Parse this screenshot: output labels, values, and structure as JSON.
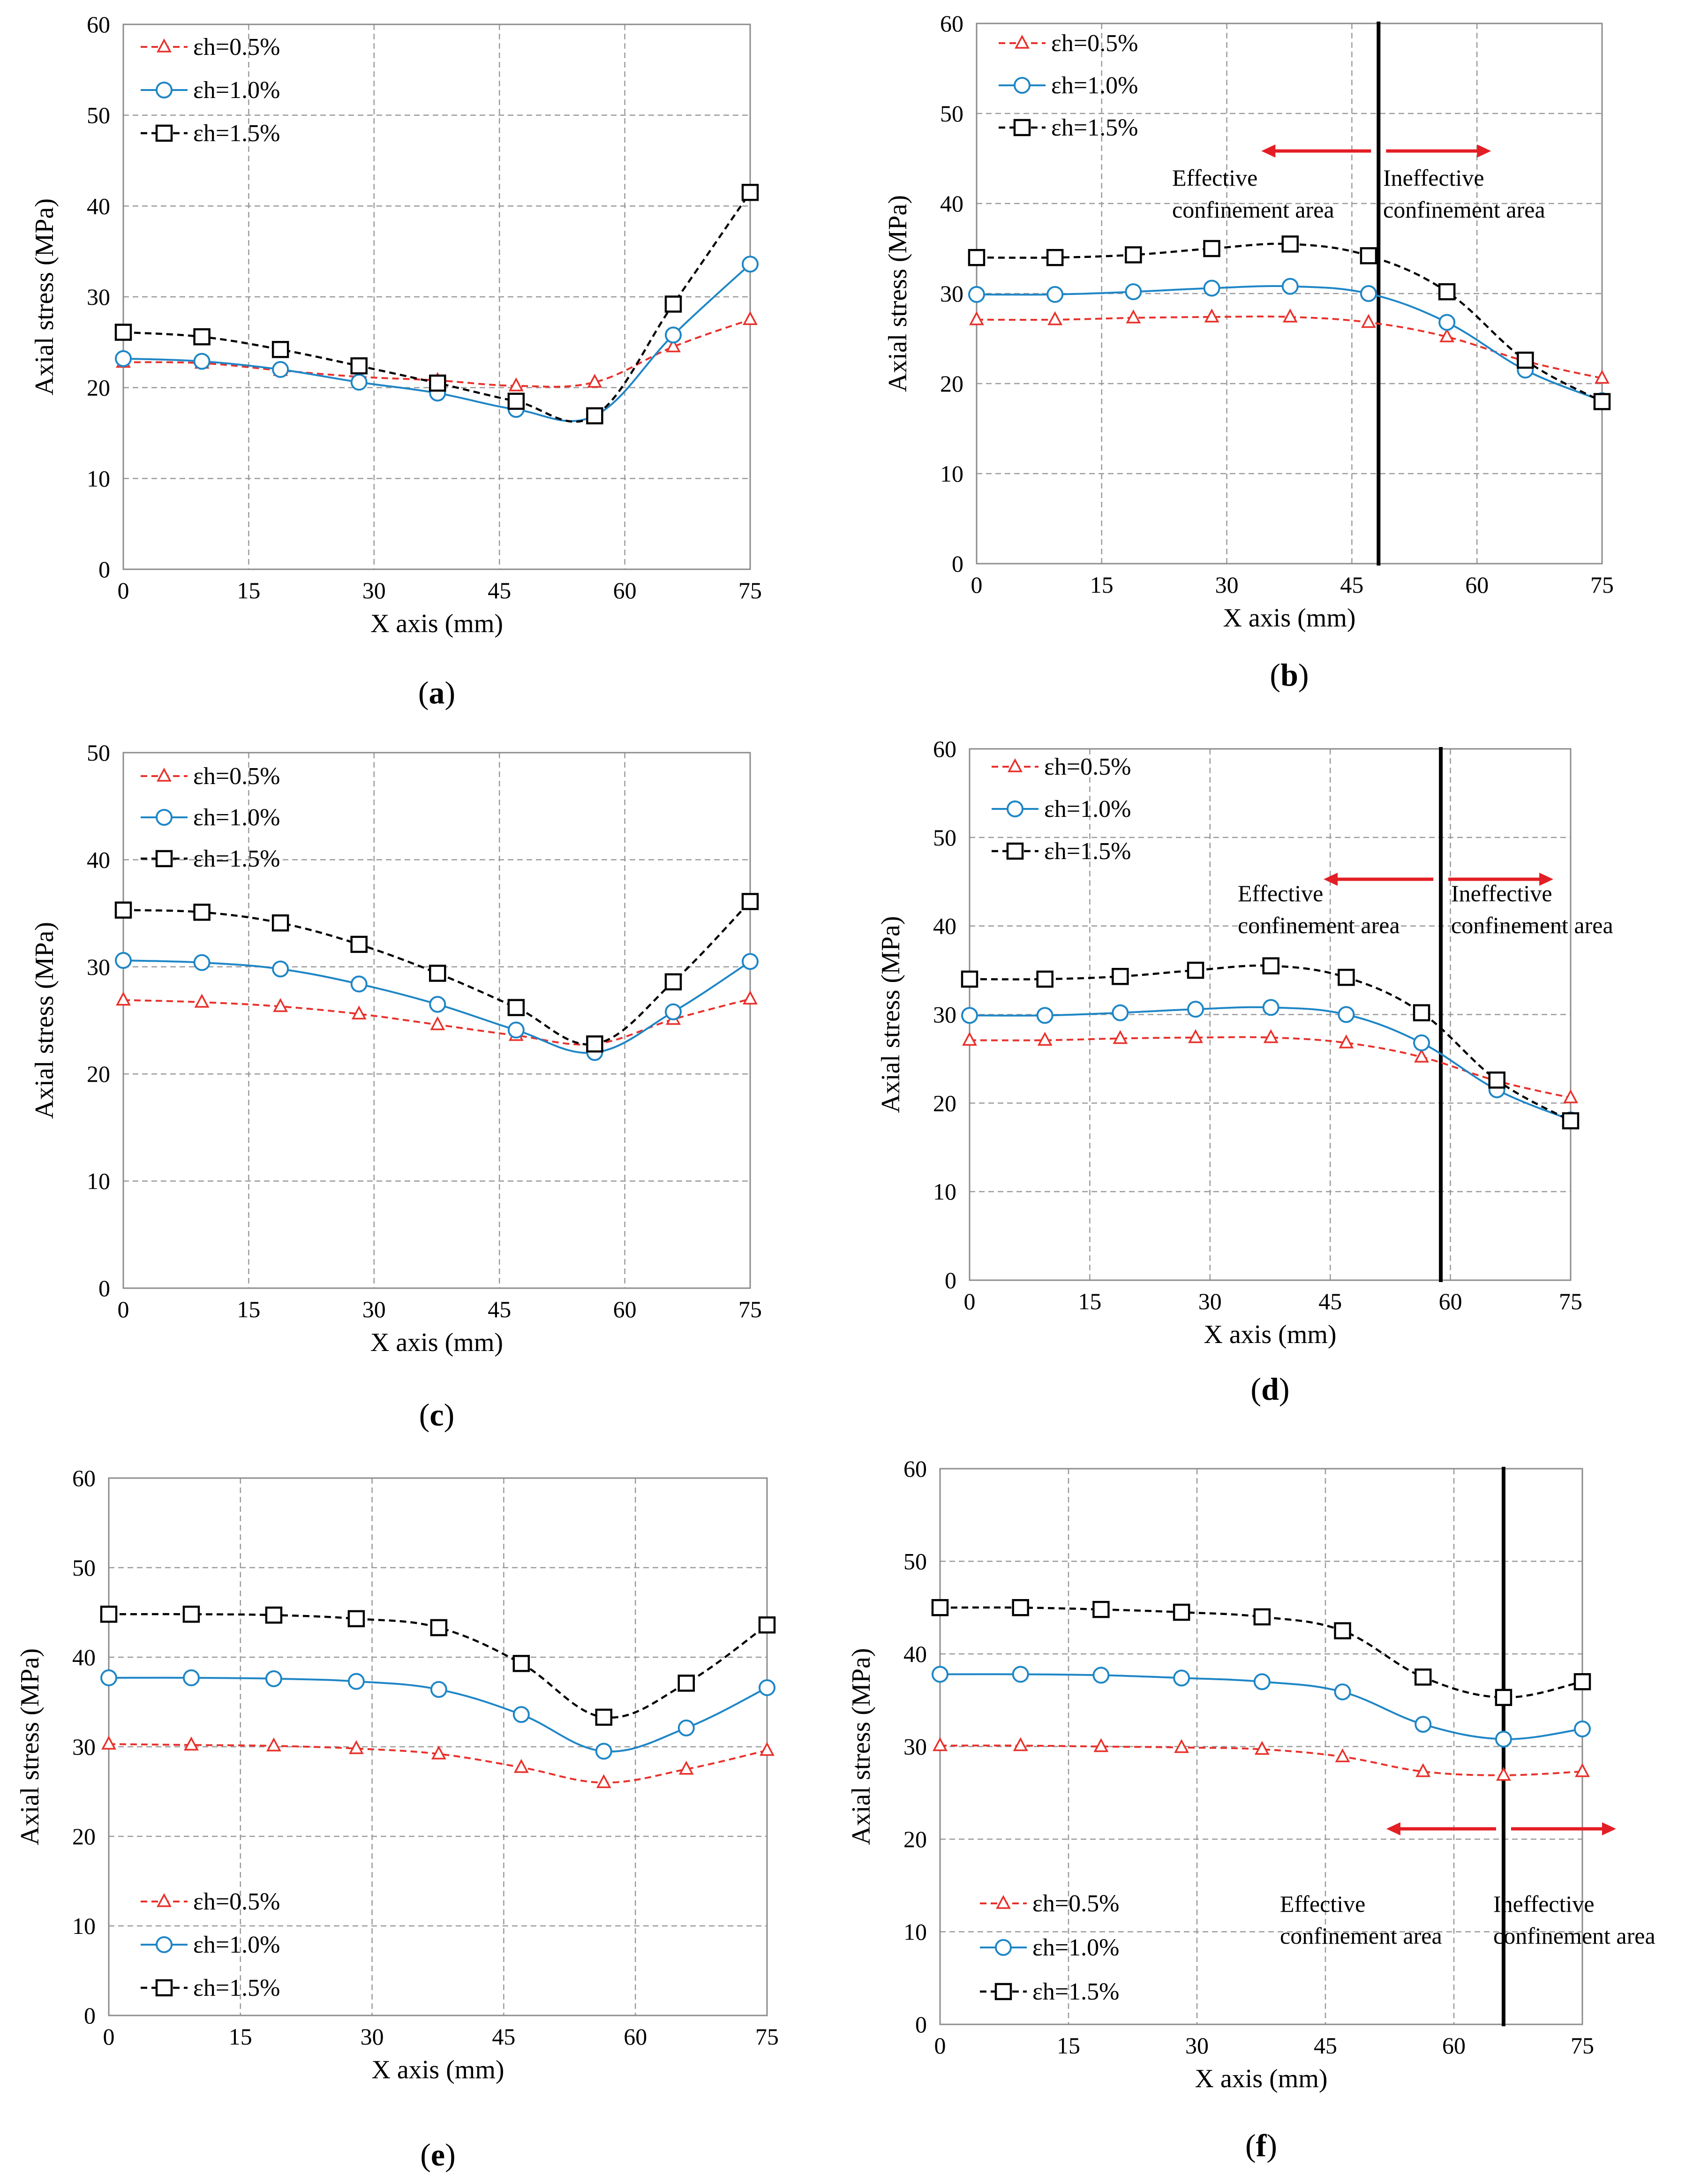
{
  "colors": {
    "s05": "#e8312b",
    "s10": "#1f86c6",
    "s15": "#000000",
    "grid": "#9a9a9a",
    "arrow": "#e31e24"
  },
  "chart_data": [
    {
      "type": "line",
      "caption": "a",
      "title": "",
      "xlabel": "X axis (mm)",
      "ylabel": "Axial stress (MPa)",
      "xlim": [
        0,
        75
      ],
      "ylim": [
        0,
        60
      ],
      "xticks": [
        0,
        15,
        30,
        45,
        60,
        75
      ],
      "yticks": [
        0,
        10,
        20,
        30,
        40,
        50,
        60
      ],
      "legend_position": "top-left",
      "x": [
        0,
        9.4,
        18.8,
        28.2,
        37.6,
        47,
        56.4,
        65.8,
        75
      ],
      "series": [
        {
          "name": "εh=0.5%",
          "values": [
            22.8,
            22.7,
            21.9,
            21.2,
            20.8,
            20.2,
            20.6,
            24.5,
            27.5
          ]
        },
        {
          "name": "εh=1.0%",
          "values": [
            23.2,
            22.9,
            22.0,
            20.6,
            19.4,
            17.6,
            16.9,
            25.8,
            33.6
          ]
        },
        {
          "name": "εh=1.5%",
          "values": [
            26.1,
            25.6,
            24.2,
            22.4,
            20.5,
            18.5,
            16.9,
            29.2,
            41.5
          ]
        }
      ]
    },
    {
      "type": "line",
      "caption": "b",
      "title": "",
      "xlabel": "X axis (mm)",
      "ylabel": "Axial stress (MPa)",
      "xlim": [
        0,
        75
      ],
      "ylim": [
        0,
        60
      ],
      "xticks": [
        0,
        15,
        30,
        45,
        60,
        75
      ],
      "yticks": [
        0,
        10,
        20,
        30,
        40,
        50,
        60
      ],
      "legend_position": "top-left",
      "x": [
        0,
        9.4,
        18.8,
        28.2,
        37.6,
        47,
        56.4,
        65.8,
        75
      ],
      "series": [
        {
          "name": "εh=0.5%",
          "values": [
            27.1,
            27.1,
            27.3,
            27.4,
            27.4,
            26.8,
            25.2,
            22.5,
            20.6
          ]
        },
        {
          "name": "εh=1.0%",
          "values": [
            29.9,
            29.9,
            30.2,
            30.6,
            30.8,
            30.0,
            26.8,
            21.5,
            18.1
          ]
        },
        {
          "name": "εh=1.5%",
          "values": [
            34.0,
            34.0,
            34.3,
            35.0,
            35.5,
            34.2,
            30.2,
            22.6,
            18.0
          ]
        }
      ],
      "boundary_x": 48.2,
      "annotations": {
        "left": [
          "Effective",
          "confinement area"
        ],
        "right": [
          "Ineffective",
          "confinement area"
        ]
      }
    },
    {
      "type": "line",
      "caption": "c",
      "title": "",
      "xlabel": "X axis (mm)",
      "ylabel": "Axial stress (MPa)",
      "xlim": [
        0,
        75
      ],
      "ylim": [
        0,
        50
      ],
      "xticks": [
        0,
        15,
        30,
        45,
        60,
        75
      ],
      "yticks": [
        0,
        10,
        20,
        30,
        40,
        50
      ],
      "legend_position": "top-left",
      "x": [
        0,
        9.4,
        18.8,
        28.2,
        37.6,
        47,
        56.4,
        65.8,
        75
      ],
      "series": [
        {
          "name": "εh=0.5%",
          "values": [
            26.9,
            26.7,
            26.3,
            25.6,
            24.6,
            23.6,
            22.8,
            25.1,
            27.0
          ]
        },
        {
          "name": "εh=1.0%",
          "values": [
            30.6,
            30.4,
            29.8,
            28.4,
            26.5,
            24.1,
            22.0,
            25.8,
            30.5
          ]
        },
        {
          "name": "εh=1.5%",
          "values": [
            35.3,
            35.1,
            34.1,
            32.1,
            29.4,
            26.2,
            22.8,
            28.6,
            36.1
          ]
        }
      ]
    },
    {
      "type": "line",
      "caption": "d",
      "title": "",
      "xlabel": "X axis (mm)",
      "ylabel": "Axial stress (MPa)",
      "xlim": [
        0,
        75
      ],
      "ylim": [
        0,
        60
      ],
      "xticks": [
        0,
        15,
        30,
        45,
        60,
        75
      ],
      "yticks": [
        0,
        10,
        20,
        30,
        40,
        50,
        60
      ],
      "legend_position": "top-left",
      "x": [
        0,
        9.4,
        18.8,
        28.2,
        37.6,
        47,
        56.4,
        65.8,
        75
      ],
      "series": [
        {
          "name": "εh=0.5%",
          "values": [
            27.1,
            27.1,
            27.3,
            27.4,
            27.4,
            26.8,
            25.2,
            22.5,
            20.6
          ]
        },
        {
          "name": "εh=1.0%",
          "values": [
            29.9,
            29.9,
            30.2,
            30.6,
            30.8,
            30.0,
            26.8,
            21.5,
            18.1
          ]
        },
        {
          "name": "εh=1.5%",
          "values": [
            34.0,
            34.0,
            34.3,
            35.0,
            35.5,
            34.2,
            30.2,
            22.6,
            18.0
          ]
        }
      ],
      "boundary_x": 58.8,
      "annotations": {
        "left": [
          "Effective",
          "confinement area"
        ],
        "right": [
          "Ineffective",
          "confinement area"
        ]
      }
    },
    {
      "type": "line",
      "caption": "e",
      "title": "",
      "xlabel": "X axis (mm)",
      "ylabel": "Axial stress (MPa)",
      "xlim": [
        0,
        75
      ],
      "ylim": [
        0,
        60
      ],
      "xticks": [
        0,
        15,
        30,
        45,
        60,
        75
      ],
      "yticks": [
        0,
        10,
        20,
        30,
        40,
        50,
        60
      ],
      "legend_position": "bottom-left",
      "x": [
        0,
        9.4,
        18.8,
        28.2,
        37.6,
        47,
        56.4,
        65.8,
        75
      ],
      "series": [
        {
          "name": "εh=0.5%",
          "values": [
            30.3,
            30.2,
            30.1,
            29.8,
            29.2,
            27.7,
            26.0,
            27.5,
            29.6
          ]
        },
        {
          "name": "εh=1.0%",
          "values": [
            37.7,
            37.7,
            37.6,
            37.3,
            36.4,
            33.6,
            29.5,
            32.1,
            36.6
          ]
        },
        {
          "name": "εh=1.5%",
          "values": [
            44.8,
            44.8,
            44.7,
            44.3,
            43.3,
            39.3,
            33.3,
            37.1,
            43.6
          ]
        }
      ]
    },
    {
      "type": "line",
      "caption": "f",
      "title": "",
      "xlabel": "X axis (mm)",
      "ylabel": "Axial stress (MPa)",
      "xlim": [
        0,
        75
      ],
      "ylim": [
        0,
        60
      ],
      "xticks": [
        0,
        15,
        30,
        45,
        60,
        75
      ],
      "yticks": [
        0,
        10,
        20,
        30,
        40,
        50,
        60
      ],
      "legend_position": "bottom-left",
      "x": [
        0,
        9.4,
        18.8,
        28.2,
        37.6,
        47,
        56.4,
        65.8,
        75
      ],
      "series": [
        {
          "name": "εh=0.5%",
          "values": [
            30.1,
            30.1,
            30.0,
            29.9,
            29.7,
            28.9,
            27.3,
            26.9,
            27.3
          ]
        },
        {
          "name": "εh=1.0%",
          "values": [
            37.8,
            37.8,
            37.7,
            37.4,
            37.0,
            35.9,
            32.4,
            30.8,
            31.9
          ]
        },
        {
          "name": "εh=1.5%",
          "values": [
            45.0,
            45.0,
            44.8,
            44.5,
            44.0,
            42.5,
            37.5,
            35.3,
            37.0
          ]
        }
      ],
      "boundary_x": 65.8,
      "annotations": {
        "left": [
          "Effective",
          "confinement area"
        ],
        "right": [
          "Ineffective",
          "confinement area"
        ]
      }
    }
  ]
}
